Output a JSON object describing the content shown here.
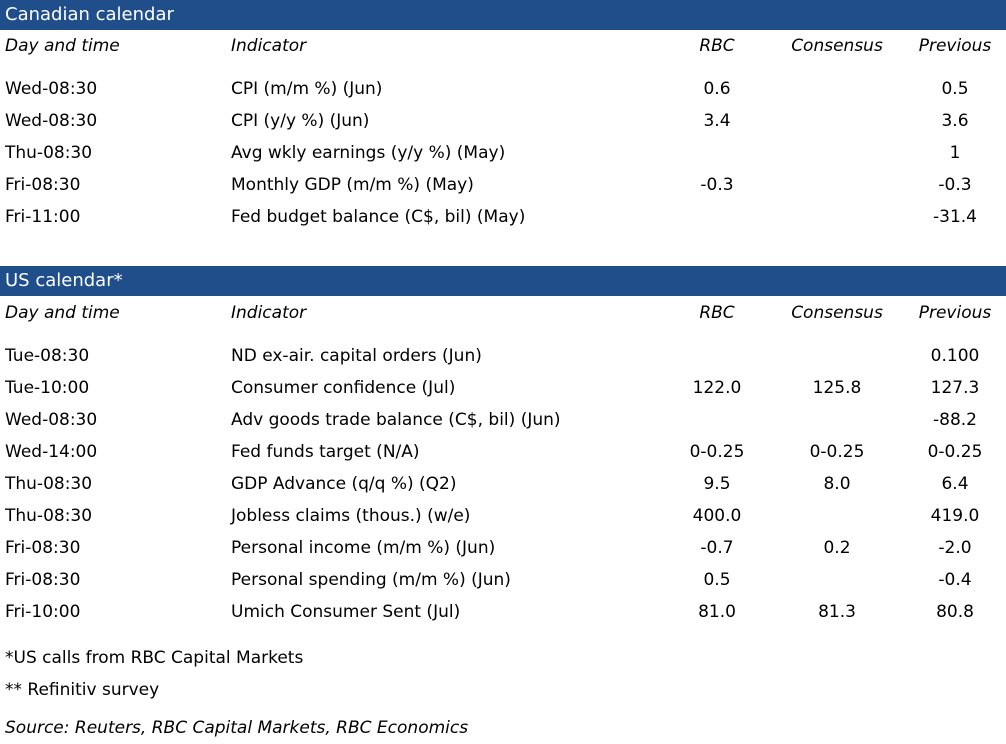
{
  "canadian": {
    "title": "Canadian calendar",
    "headers": {
      "day": "Day and time",
      "indicator": "Indicator",
      "rbc": "RBC",
      "consensus": "Consensus",
      "previous": "Previous"
    },
    "rows": [
      {
        "day": "Wed-08:30",
        "indicator": "CPI (m/m %) (Jun)",
        "rbc": "0.6",
        "consensus": "",
        "previous": "0.5"
      },
      {
        "day": "Wed-08:30",
        "indicator": "CPI (y/y %) (Jun)",
        "rbc": "3.4",
        "consensus": "",
        "previous": "3.6"
      },
      {
        "day": "Thu-08:30",
        "indicator": "Avg wkly earnings (y/y %) (May)",
        "rbc": "",
        "consensus": "",
        "previous": "1"
      },
      {
        "day": "Fri-08:30",
        "indicator": "Monthly GDP (m/m %) (May)",
        "rbc": "-0.3",
        "consensus": "",
        "previous": "-0.3"
      },
      {
        "day": "Fri-11:00",
        "indicator": "Fed budget balance (C$, bil) (May)",
        "rbc": "",
        "consensus": "",
        "previous": "-31.4"
      }
    ]
  },
  "us": {
    "title": "US calendar*",
    "headers": {
      "day": "Day and time",
      "indicator": "Indicator",
      "rbc": "RBC",
      "consensus": "Consensus",
      "previous": "Previous"
    },
    "rows": [
      {
        "day": "Tue-08:30",
        "indicator": "ND ex-air. capital orders (Jun)",
        "rbc": "",
        "consensus": "",
        "previous": "0.100"
      },
      {
        "day": "Tue-10:00",
        "indicator": "Consumer confidence (Jul)",
        "rbc": "122.0",
        "consensus": "125.8",
        "previous": "127.3"
      },
      {
        "day": "Wed-08:30",
        "indicator": "Adv goods trade balance (C$, bil) (Jun)",
        "rbc": "",
        "consensus": "",
        "previous": "-88.2"
      },
      {
        "day": "Wed-14:00",
        "indicator": "Fed funds target (N/A)",
        "rbc": "0-0.25",
        "consensus": "0-0.25",
        "previous": "0-0.25"
      },
      {
        "day": "Thu-08:30",
        "indicator": "GDP Advance (q/q %) (Q2)",
        "rbc": "9.5",
        "consensus": "8.0",
        "previous": "6.4"
      },
      {
        "day": "Thu-08:30",
        "indicator": "Jobless claims (thous.) (w/e)",
        "rbc": "400.0",
        "consensus": "",
        "previous": "419.0"
      },
      {
        "day": "Fri-08:30",
        "indicator": "Personal income (m/m %) (Jun)",
        "rbc": "-0.7",
        "consensus": "0.2",
        "previous": "-2.0"
      },
      {
        "day": "Fri-08:30",
        "indicator": "Personal spending (m/m %) (Jun)",
        "rbc": "0.5",
        "consensus": "",
        "previous": "-0.4"
      },
      {
        "day": "Fri-10:00",
        "indicator": "Umich Consumer Sent (Jul)",
        "rbc": "81.0",
        "consensus": "81.3",
        "previous": "80.8"
      }
    ]
  },
  "notes": {
    "us_calls": "*US calls from RBC Capital Markets",
    "survey": "** Refinitiv survey",
    "source": "Source: Reuters, RBC Capital Markets, RBC Economics"
  }
}
